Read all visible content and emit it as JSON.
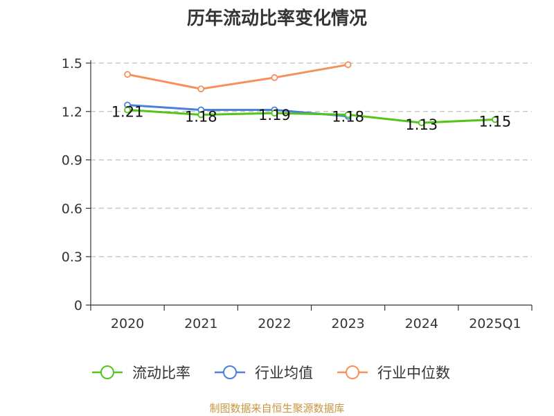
{
  "title": "历年流动比率变化情况",
  "source_note": "制图数据来自恒生聚源数据库",
  "chart_data": {
    "type": "line",
    "title": "历年流动比率变化情况",
    "categories": [
      "2020",
      "2021",
      "2022",
      "2023",
      "2024",
      "2025Q1"
    ],
    "ylim": [
      0,
      1.5
    ],
    "yticks": [
      0,
      0.3,
      0.6,
      0.9,
      1.2,
      1.5
    ],
    "ytick_labels": [
      "0",
      "0.3",
      "0.6",
      "0.9",
      "1.2",
      "1.5"
    ],
    "grid": true,
    "legend_position": "bottom",
    "series": [
      {
        "name": "流动比率",
        "color": "#52c41a",
        "values": [
          1.21,
          1.18,
          1.19,
          1.18,
          1.13,
          1.15
        ],
        "labels": [
          "1.21",
          "1.18",
          "1.19",
          "1.18",
          "1.13",
          "1.15"
        ],
        "show_labels": true
      },
      {
        "name": "行业均值",
        "color": "#4a7fdc",
        "values": [
          1.24,
          1.21,
          1.21,
          1.17,
          null,
          null
        ],
        "show_labels": false
      },
      {
        "name": "行业中位数",
        "color": "#f5905a",
        "values": [
          1.43,
          1.34,
          1.41,
          1.49,
          null,
          null
        ],
        "show_labels": false
      }
    ]
  }
}
